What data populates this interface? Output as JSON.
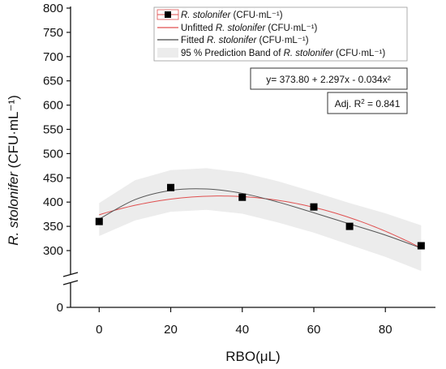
{
  "chart_data": {
    "type": "scatter",
    "xlabel": "RBO(μL)",
    "ylabel": "R. stolonifer (CFU·mL⁻¹)",
    "ylabel_italic": "R. stolonifer",
    "ylabel_rest": " (CFU·mL⁻¹)",
    "xlim": [
      -8,
      94
    ],
    "x_ticks": [
      0,
      20,
      40,
      60,
      80
    ],
    "y_ticks_upper": [
      300,
      350,
      400,
      450,
      500,
      550,
      600,
      650,
      700,
      750,
      800
    ],
    "y_ticks_lower": [
      0
    ],
    "y_break": "axis break between 0 and 300",
    "series": [
      {
        "name": "R. stolonifer (CFU·mL⁻¹)",
        "kind": "markers",
        "marker": "square",
        "color": "#000000",
        "x": [
          0,
          20,
          40,
          60,
          70,
          90
        ],
        "y": [
          360,
          430,
          410,
          390,
          350,
          310
        ]
      },
      {
        "name": "Unfitted R. stolonifer (CFU·mL⁻¹)",
        "kind": "line",
        "color": "#e05050",
        "coefficients": [
          373.8,
          2.297,
          -0.034
        ]
      },
      {
        "name": "Fitted R. stolonifer (CFU·mL⁻¹)",
        "kind": "line",
        "color": "#555555",
        "x": [
          0,
          10,
          20,
          30,
          40,
          50,
          60,
          70,
          80,
          90
        ],
        "y": [
          365,
          405,
          424,
          427,
          418,
          400,
          378,
          355,
          332,
          305
        ]
      },
      {
        "name": "95 % Prediction Band of R. stolonifer (CFU·mL⁻¹)",
        "kind": "band",
        "color": "#ececec",
        "x": [
          0,
          10,
          20,
          30,
          40,
          50,
          60,
          70,
          80,
          90
        ],
        "lower": [
          330,
          362,
          380,
          384,
          376,
          358,
          337,
          312,
          287,
          258
        ],
        "upper": [
          398,
          445,
          466,
          470,
          461,
          443,
          421,
          398,
          377,
          352
        ]
      }
    ],
    "legend": {
      "placement": "top-right",
      "entries": [
        {
          "italic": "R. stolonifer",
          "rest": " (CFU·mL⁻¹)"
        },
        {
          "prefix": "Unfitted ",
          "italic": "R. stolonifer",
          "rest": " (CFU·mL⁻¹)"
        },
        {
          "prefix": "Fitted ",
          "italic": "R. stolonifer",
          "rest": " (CFU·mL⁻¹)"
        },
        {
          "prefix": "95 % Prediction Band of ",
          "italic": "R. stolonifer",
          "rest": " (CFU·mL⁻¹)"
        }
      ]
    },
    "annotations": {
      "equation": "y= 373.80 + 2.297x - 0.034x²",
      "r2_prefix": "Adj. R",
      "r2_sup": "2",
      "r2_rest": " = 0.841"
    },
    "grid": false
  }
}
